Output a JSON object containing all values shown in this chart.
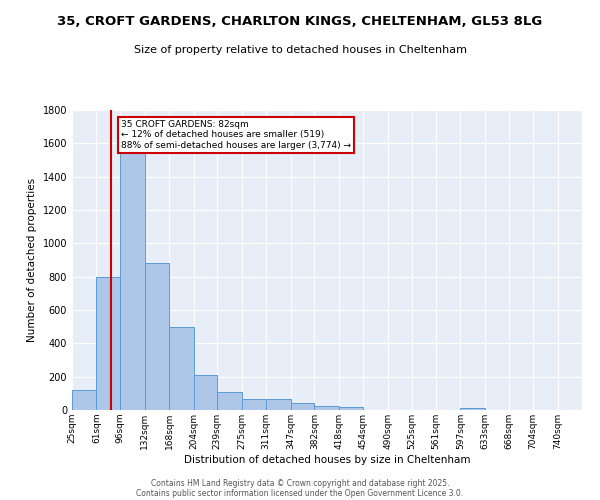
{
  "title": "35, CROFT GARDENS, CHARLTON KINGS, CHELTENHAM, GL53 8LG",
  "subtitle": "Size of property relative to detached houses in Cheltenham",
  "xlabel": "Distribution of detached houses by size in Cheltenham",
  "ylabel": "Number of detached properties",
  "bins": [
    25,
    61,
    96,
    132,
    168,
    204,
    239,
    275,
    311,
    347,
    382,
    418,
    454,
    490,
    525,
    561,
    597,
    633,
    668,
    704,
    740
  ],
  "bin_labels": [
    "25sqm",
    "61sqm",
    "96sqm",
    "132sqm",
    "168sqm",
    "204sqm",
    "239sqm",
    "275sqm",
    "311sqm",
    "347sqm",
    "382sqm",
    "418sqm",
    "454sqm",
    "490sqm",
    "525sqm",
    "561sqm",
    "597sqm",
    "633sqm",
    "668sqm",
    "704sqm",
    "740sqm"
  ],
  "values": [
    120,
    800,
    1540,
    880,
    500,
    210,
    110,
    65,
    65,
    40,
    25,
    20,
    0,
    0,
    0,
    0,
    10,
    0,
    0,
    0,
    0
  ],
  "bar_color": "#aec6e8",
  "bar_edge_color": "#5b9bd5",
  "red_line_x": 82,
  "annotation_title": "35 CROFT GARDENS: 82sqm",
  "annotation_line1": "← 12% of detached houses are smaller (519)",
  "annotation_line2": "88% of semi-detached houses are larger (3,774) →",
  "annotation_box_color": "#ffffff",
  "annotation_border_color": "#cc0000",
  "ylim": [
    0,
    1800
  ],
  "yticks": [
    0,
    200,
    400,
    600,
    800,
    1000,
    1200,
    1400,
    1600,
    1800
  ],
  "bg_color": "#e8eef8",
  "footer1": "Contains HM Land Registry data © Crown copyright and database right 2025.",
  "footer2": "Contains public sector information licensed under the Open Government Licence 3.0."
}
